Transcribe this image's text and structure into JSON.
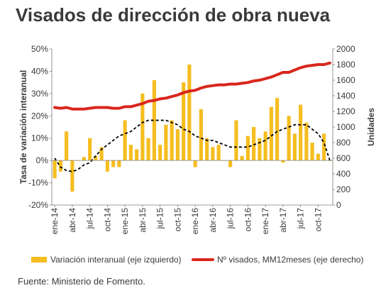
{
  "page": {
    "title": "Visados de dirección de obra nueva",
    "source": "Fuente: Ministerio de Fomento."
  },
  "colors": {
    "bars": "#f5bd1f",
    "line_red": "#d9261c",
    "trend": "#000000",
    "text": "#3a3a3a",
    "grid": "#bdbdbd"
  },
  "chart_data": {
    "type": "bar",
    "combo": [
      "bar",
      "line",
      "line"
    ],
    "title": "Visados de dirección de obra nueva",
    "ylabel_left": "Tasa de variación interanual",
    "ylabel_right": "Unidades",
    "ylim_left": [
      -20,
      50
    ],
    "ylim_right": [
      0,
      2000
    ],
    "left_ticks": [
      "50%",
      "40%",
      "30%",
      "20%",
      "10%",
      "0%",
      "-10%",
      "-20%"
    ],
    "right_ticks": [
      "2000",
      "1800",
      "1600",
      "1400",
      "1200",
      "1000",
      "800",
      "600",
      "400",
      "200",
      "0"
    ],
    "x_tick_labels": [
      "ene-14",
      "abr-14",
      "jul-14",
      "oct-14",
      "ene-15",
      "abr-15",
      "jul-15",
      "oct-15",
      "ene-16",
      "abr-16",
      "jul-16",
      "oct-16",
      "ene-17",
      "abr-17",
      "jul-17",
      "oct-17"
    ],
    "categories": [
      "ene-14",
      "feb-14",
      "mar-14",
      "abr-14",
      "may-14",
      "jun-14",
      "jul-14",
      "ago-14",
      "sep-14",
      "oct-14",
      "nov-14",
      "dic-14",
      "ene-15",
      "feb-15",
      "mar-15",
      "abr-15",
      "may-15",
      "jun-15",
      "jul-15",
      "ago-15",
      "sep-15",
      "oct-15",
      "nov-15",
      "dic-15",
      "ene-16",
      "feb-16",
      "mar-16",
      "abr-16",
      "may-16",
      "jun-16",
      "jul-16",
      "ago-16",
      "sep-16",
      "oct-16",
      "nov-16",
      "dic-16",
      "ene-17",
      "feb-17",
      "mar-17",
      "abr-17",
      "may-17",
      "jun-17",
      "jul-17",
      "ago-17",
      "sep-17",
      "oct-17",
      "nov-17",
      "dic-17"
    ],
    "grid": false,
    "legend_position": "bottom",
    "series": [
      {
        "name": "Variación interanual (eje izquierdo)",
        "type": "bar",
        "axis": "left",
        "values": [
          -8,
          -5,
          13,
          -14,
          0,
          1.5,
          10,
          2,
          6,
          -5,
          -3,
          -3,
          18,
          7,
          5,
          30,
          10,
          36,
          7,
          16,
          18,
          14,
          35,
          43,
          -3,
          23,
          10,
          6,
          7,
          0,
          -3,
          18,
          2,
          11,
          15,
          10,
          13,
          24,
          28,
          -1,
          20,
          12,
          25,
          17,
          8,
          3,
          12,
          0
        ],
        "color": "#f5bd1f"
      },
      {
        "name": "Nº visados, MM12meses (eje derecho)",
        "type": "line",
        "axis": "right",
        "values": [
          1250,
          1240,
          1250,
          1230,
          1230,
          1230,
          1240,
          1250,
          1250,
          1250,
          1240,
          1240,
          1260,
          1260,
          1280,
          1300,
          1330,
          1340,
          1360,
          1370,
          1390,
          1410,
          1440,
          1460,
          1470,
          1500,
          1520,
          1530,
          1540,
          1540,
          1550,
          1550,
          1560,
          1570,
          1590,
          1600,
          1620,
          1640,
          1670,
          1700,
          1700,
          1730,
          1760,
          1780,
          1790,
          1800,
          1800,
          1820
        ],
        "color": "#d9261c"
      },
      {
        "type": "line",
        "axis": "left",
        "style": "dashed",
        "values": [
          1,
          -3,
          -4.5,
          -5,
          -4,
          -2,
          -1,
          2,
          5,
          7,
          9,
          11,
          12,
          13,
          15,
          17,
          18,
          18,
          18,
          18,
          17,
          16,
          14,
          13,
          11,
          10,
          9,
          9,
          8,
          7,
          6,
          6,
          6,
          6,
          7,
          8,
          9,
          11,
          13,
          14,
          15,
          16,
          16,
          16,
          14,
          12,
          8,
          0
        ],
        "color": "#000000"
      }
    ]
  }
}
